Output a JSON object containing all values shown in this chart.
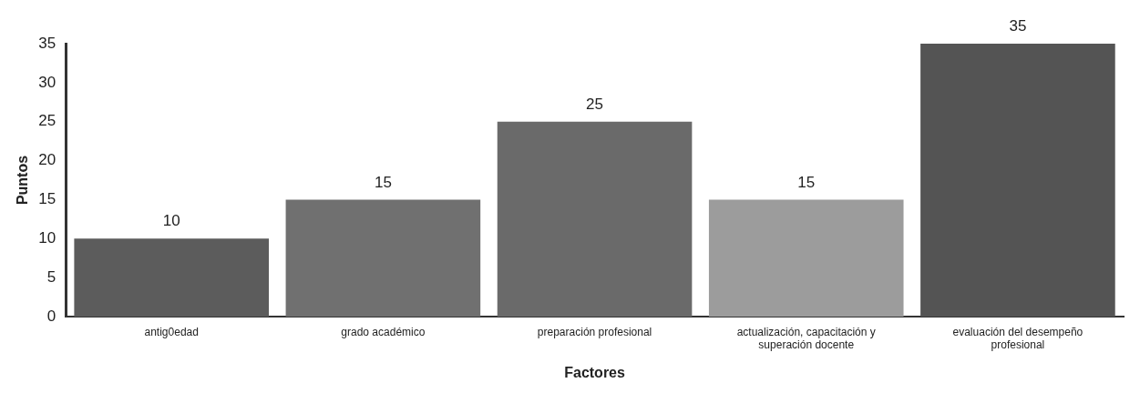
{
  "chart_data": {
    "type": "bar",
    "xlabel": "Factores",
    "ylabel": "Puntos",
    "categories": [
      "antig0edad",
      "grado académico",
      "preparación profesional",
      "actualización, capacitación y superación docente",
      "evaluación del desempeño profesional"
    ],
    "values": [
      10,
      15,
      25,
      15,
      35
    ],
    "colors": [
      "#5c5c5c",
      "#707070",
      "#6a6a6a",
      "#9c9c9c",
      "#545454"
    ],
    "ylim": [
      0,
      35
    ],
    "yticks": [
      0,
      5,
      10,
      15,
      20,
      25,
      30,
      35
    ],
    "grid": false,
    "legend": false,
    "data_labels": true
  }
}
